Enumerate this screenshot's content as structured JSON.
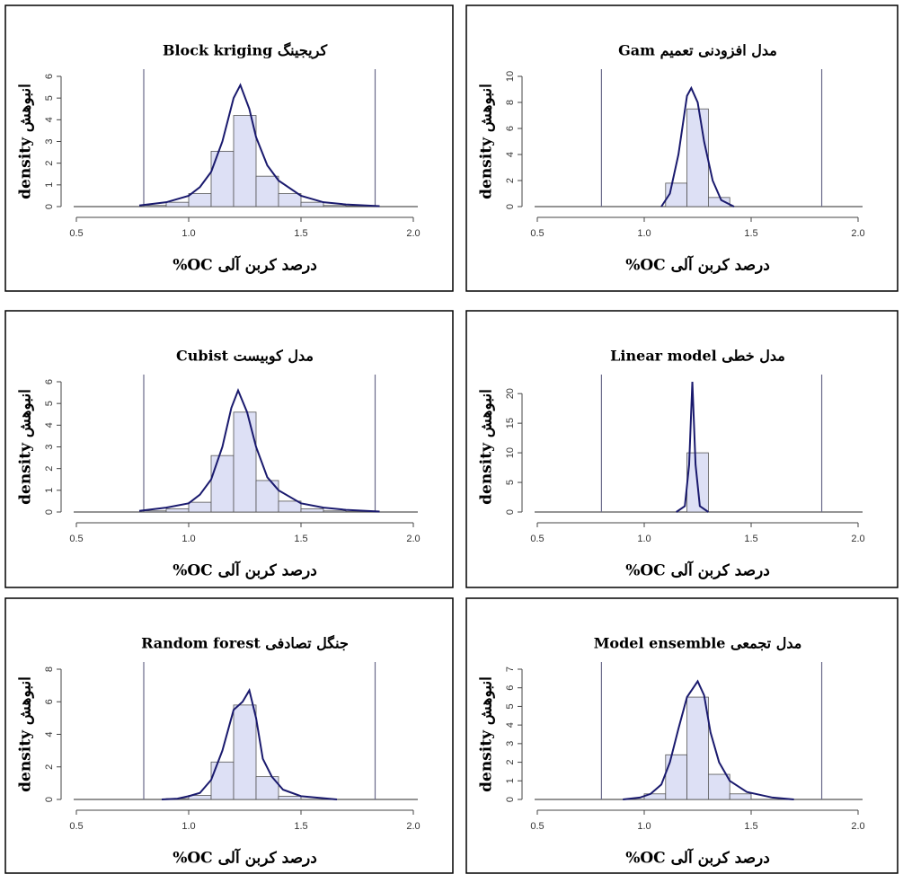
{
  "chart_data": [
    {
      "type": "histogram",
      "title": "Block kriging کریجینگ",
      "xlabel": "%OC درصد کربن آلی",
      "ylabel": "density انبوهش",
      "bins": [
        0.8,
        0.9,
        1.0,
        1.1,
        1.2,
        1.3,
        1.4,
        1.5,
        1.6,
        1.7,
        1.8
      ],
      "values": [
        0.05,
        0.2,
        0.6,
        2.55,
        4.2,
        1.4,
        0.6,
        0.2,
        0.05,
        0.03
      ],
      "density": {
        "x": [
          0.78,
          0.9,
          1.0,
          1.05,
          1.1,
          1.15,
          1.2,
          1.23,
          1.27,
          1.3,
          1.35,
          1.4,
          1.5,
          1.6,
          1.7,
          1.85
        ],
        "y": [
          0.05,
          0.2,
          0.5,
          0.9,
          1.6,
          3.0,
          5.0,
          5.6,
          4.5,
          3.2,
          1.9,
          1.2,
          0.5,
          0.2,
          0.1,
          0.02
        ]
      },
      "vlines": [
        0.8,
        1.83
      ],
      "xlim": [
        0.5,
        2.0
      ],
      "xticks": [
        0.5,
        {
          "value": 1,
          "label": "1.0"
        },
        1.5,
        {
          "value": 2,
          "label": "2.0"
        }
      ],
      "ylim": [
        0,
        6
      ],
      "yticks": [
        0,
        1,
        2,
        3,
        4,
        5,
        6
      ]
    },
    {
      "type": "histogram",
      "title": "Gam مدل افزودنی تعمیم",
      "xlabel": "%OC درصد کربن آلی",
      "ylabel": "density انبوهش",
      "bins": [
        1.1,
        1.2,
        1.3,
        1.4
      ],
      "values": [
        1.8,
        7.5,
        0.7
      ],
      "density": {
        "x": [
          1.08,
          1.12,
          1.16,
          1.2,
          1.22,
          1.25,
          1.28,
          1.32,
          1.36,
          1.42
        ],
        "y": [
          0,
          1,
          4,
          8.5,
          9.1,
          8,
          5,
          2,
          0.5,
          0
        ]
      },
      "vlines": [
        0.8,
        1.83
      ],
      "xlim": [
        0.5,
        2.0
      ],
      "xticks": [
        0.5,
        {
          "value": 1,
          "label": "1.0"
        },
        1.5,
        {
          "value": 2,
          "label": "2.0"
        }
      ],
      "ylim": [
        0,
        10
      ],
      "yticks": [
        0,
        2,
        4,
        6,
        8,
        10
      ]
    },
    {
      "type": "histogram",
      "title": "Cubist مدل کوبیست",
      "xlabel": "%OC درصد کربن آلی",
      "ylabel": "density انبوهش",
      "bins": [
        0.8,
        0.9,
        1.0,
        1.1,
        1.2,
        1.3,
        1.4,
        1.5,
        1.6,
        1.7,
        1.8
      ],
      "values": [
        0.05,
        0.15,
        0.45,
        2.6,
        4.6,
        1.45,
        0.5,
        0.15,
        0.05,
        0.02
      ],
      "density": {
        "x": [
          0.78,
          0.9,
          1.0,
          1.05,
          1.1,
          1.15,
          1.19,
          1.22,
          1.26,
          1.3,
          1.35,
          1.4,
          1.5,
          1.6,
          1.7,
          1.85
        ],
        "y": [
          0.05,
          0.2,
          0.4,
          0.8,
          1.5,
          3.0,
          4.8,
          5.6,
          4.6,
          3.0,
          1.6,
          1.0,
          0.4,
          0.2,
          0.1,
          0.02
        ]
      },
      "vlines": [
        0.8,
        1.83
      ],
      "xlim": [
        0.5,
        2.0
      ],
      "xticks": [
        0.5,
        {
          "value": 1,
          "label": "1.0"
        },
        1.5,
        {
          "value": 2,
          "label": "2.0"
        }
      ],
      "ylim": [
        0,
        6
      ],
      "yticks": [
        0,
        1,
        2,
        3,
        4,
        5,
        6
      ]
    },
    {
      "type": "histogram",
      "title": "Linear model مدل خطی",
      "xlabel": "%OC درصد کربن آلی",
      "ylabel": "density انبوهش",
      "bins": [
        1.2,
        1.3
      ],
      "values": [
        10
      ],
      "density": {
        "x": [
          1.15,
          1.19,
          1.21,
          1.225,
          1.24,
          1.26,
          1.3
        ],
        "y": [
          0,
          1,
          8,
          22,
          8,
          1,
          0
        ]
      },
      "vlines": [
        0.8,
        1.83
      ],
      "xlim": [
        0.5,
        2.0
      ],
      "xticks": [
        0.5,
        {
          "value": 1,
          "label": "1.0"
        },
        1.5,
        {
          "value": 2,
          "label": "2.0"
        }
      ],
      "ylim": [
        0,
        22
      ],
      "yticks": [
        0,
        5,
        10,
        15,
        20
      ]
    },
    {
      "type": "histogram",
      "title": "Random forest جنگل تصادفی",
      "xlabel": "%OC درصد کربن آلی",
      "ylabel": "density انبوهش",
      "bins": [
        0.9,
        1.0,
        1.1,
        1.2,
        1.3,
        1.4,
        1.5
      ],
      "values": [
        0.05,
        0.25,
        2.3,
        5.8,
        1.4,
        0.2
      ],
      "density": {
        "x": [
          0.88,
          0.95,
          1.0,
          1.05,
          1.1,
          1.15,
          1.2,
          1.24,
          1.27,
          1.3,
          1.33,
          1.37,
          1.42,
          1.5,
          1.66
        ],
        "y": [
          0,
          0.05,
          0.2,
          0.4,
          1.2,
          3.0,
          5.5,
          6.0,
          6.7,
          5.0,
          2.5,
          1.4,
          0.6,
          0.2,
          0
        ]
      },
      "vlines": [
        0.8,
        1.83
      ],
      "xlim": [
        0.5,
        2.0
      ],
      "xticks": [
        0.5,
        {
          "value": 1,
          "label": "1.0"
        },
        1.5,
        {
          "value": 2,
          "label": "2.0"
        }
      ],
      "ylim": [
        0,
        8
      ],
      "yticks": [
        0,
        2,
        4,
        6,
        8
      ]
    },
    {
      "type": "histogram",
      "title": "Model ensemble مدل تجمعی",
      "xlabel": "%OC درصد کربن آلی",
      "ylabel": "density انبوهش",
      "bins": [
        1.0,
        1.1,
        1.2,
        1.3,
        1.4,
        1.5
      ],
      "values": [
        0.3,
        2.4,
        5.5,
        1.35,
        0.3
      ],
      "density": {
        "x": [
          0.9,
          0.98,
          1.03,
          1.08,
          1.12,
          1.16,
          1.2,
          1.25,
          1.28,
          1.31,
          1.35,
          1.4,
          1.48,
          1.6,
          1.7
        ],
        "y": [
          0,
          0.1,
          0.3,
          0.8,
          2.0,
          3.8,
          5.5,
          6.35,
          5.6,
          3.6,
          2.0,
          1.0,
          0.4,
          0.1,
          0
        ]
      },
      "vlines": [
        0.8,
        1.83
      ],
      "xlim": [
        0.5,
        2.0
      ],
      "xticks": [
        0.5,
        {
          "value": 1,
          "label": "1.0"
        },
        1.5,
        {
          "value": 2,
          "label": "2.0"
        }
      ],
      "ylim": [
        0,
        7
      ],
      "yticks": [
        0,
        1,
        2,
        3,
        4,
        5,
        6,
        7
      ]
    }
  ]
}
